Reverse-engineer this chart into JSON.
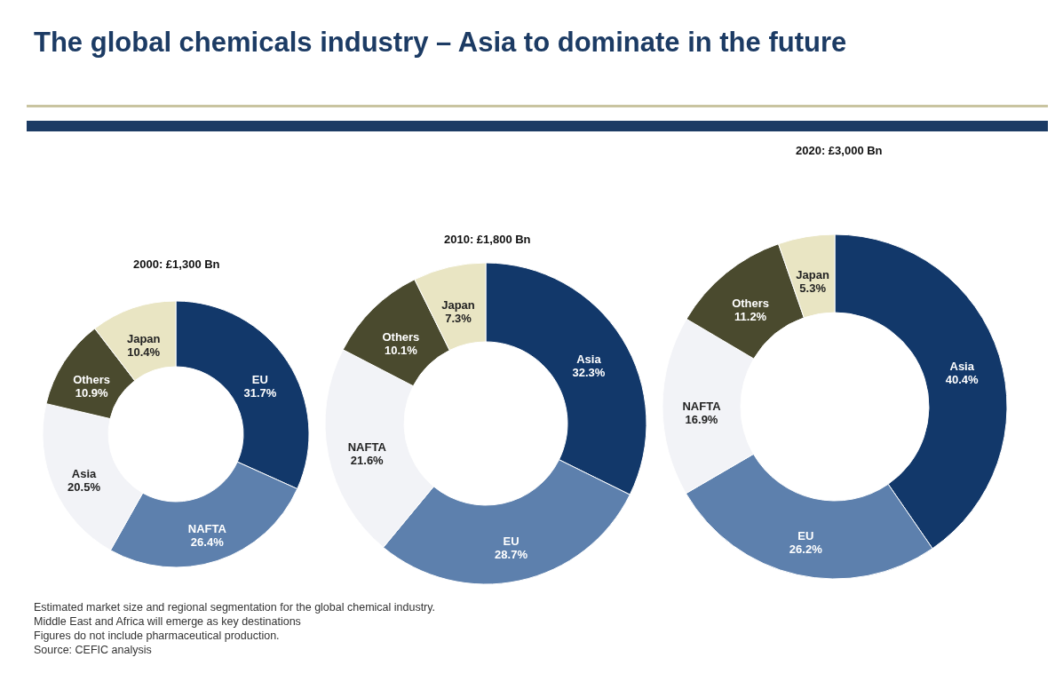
{
  "chart_data": [
    {
      "type": "donut",
      "title": "The global chemicals industry – Asia to dominate in the future",
      "subtitle": "2000: £1,300 Bn",
      "categories": [
        "EU",
        "NAFTA",
        "Asia",
        "Others",
        "Japan"
      ],
      "values": [
        31.7,
        26.4,
        20.5,
        10.9,
        10.4
      ],
      "value_labels": [
        "31.7%",
        "26.4%",
        "20.5%",
        "10.9%",
        "10.4%"
      ],
      "colors": [
        "#12386a",
        "#5d80ad",
        "#f2f3f7",
        "#4a4a2e",
        "#e9e5c3"
      ],
      "annotations": [
        "Estimated market size and regional segmentation for the global chemical industry.",
        "Middle East and Africa will emerge as key destinations",
        "Figures do not include pharmaceutical production.",
        "Source: CEFIC analysis"
      ]
    },
    {
      "type": "donut",
      "subtitle": "2010: £1,800 Bn",
      "categories": [
        "Asia",
        "EU",
        "NAFTA",
        "Others",
        "Japan"
      ],
      "values": [
        32.3,
        28.7,
        21.6,
        10.1,
        7.3
      ],
      "value_labels": [
        "32.3%",
        "28.7%",
        "21.6%",
        "10.1%",
        "7.3%"
      ],
      "colors": [
        "#12386a",
        "#5d80ad",
        "#f2f3f7",
        "#4a4a2e",
        "#e9e5c3"
      ]
    },
    {
      "type": "donut",
      "subtitle": "2020: £3,000 Bn",
      "categories": [
        "Asia",
        "EU",
        "NAFTA",
        "Others",
        "Japan"
      ],
      "values": [
        40.4,
        26.2,
        16.9,
        11.2,
        5.3
      ],
      "value_labels": [
        "40.4%",
        "26.2%",
        "16.9%",
        "11.2%",
        "5.3%"
      ],
      "colors": [
        "#12386a",
        "#5d80ad",
        "#f2f3f7",
        "#4a4a2e",
        "#e9e5c3"
      ]
    }
  ]
}
